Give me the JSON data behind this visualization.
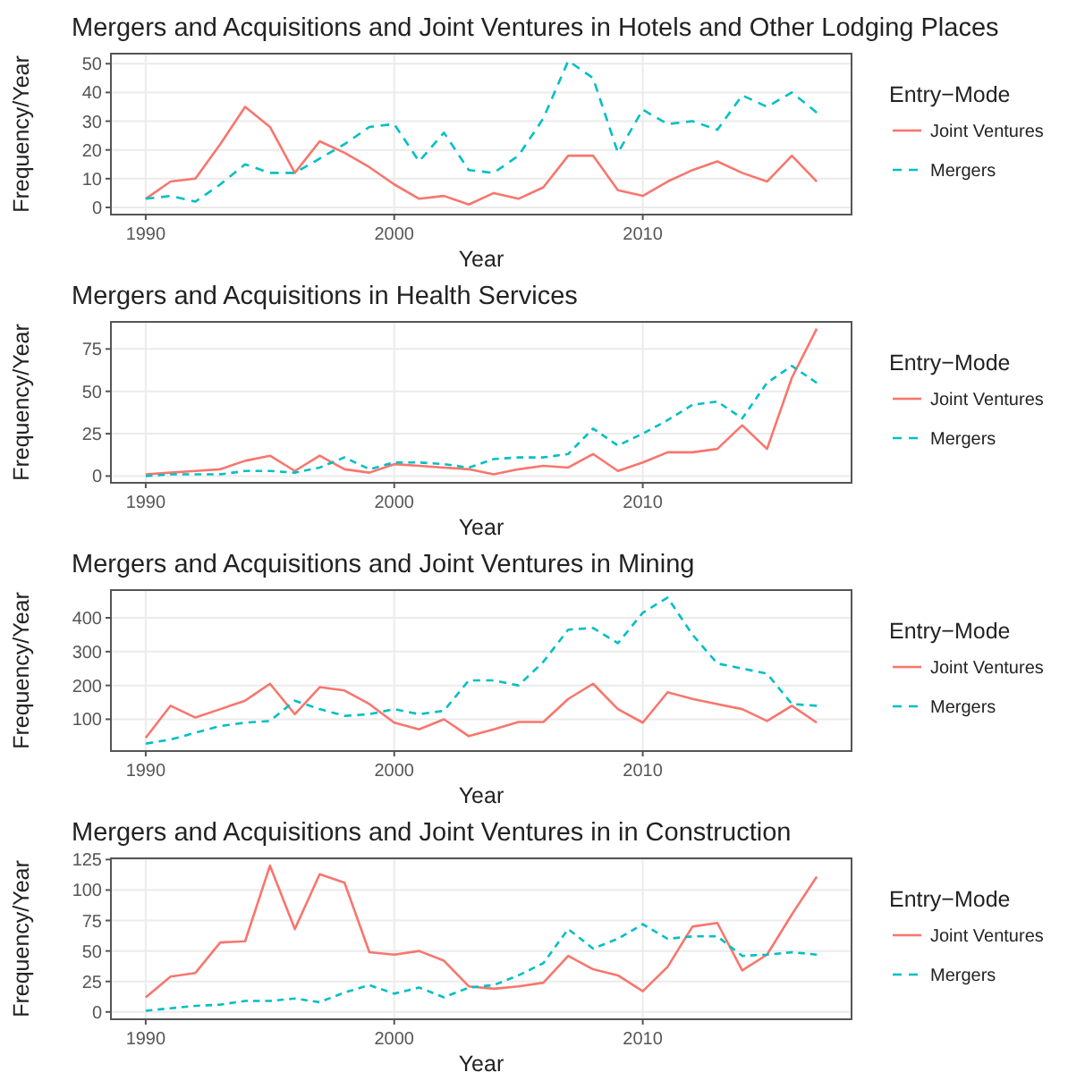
{
  "chart_data": [
    {
      "type": "line",
      "title": "Mergers and Acquisitions and Joint Ventures in Hotels and Other Lodging Places",
      "xlabel": "Year",
      "ylabel": "Frequency/Year",
      "legend_title": "Entry−Mode",
      "legend": "right",
      "grid": true,
      "x": [
        1990,
        1991,
        1992,
        1993,
        1994,
        1995,
        1996,
        1997,
        1998,
        1999,
        2000,
        2001,
        2002,
        2003,
        2004,
        2005,
        2006,
        2007,
        2008,
        2009,
        2010,
        2011,
        2012,
        2013,
        2014,
        2015,
        2016,
        2017
      ],
      "xlim": [
        1988.6,
        2018.4
      ],
      "xticks": [
        1990,
        2000,
        2010
      ],
      "ylim": [
        -2.5,
        53.5
      ],
      "yticks": [
        0,
        10,
        20,
        30,
        40,
        50
      ],
      "series": [
        {
          "name": "Joint Ventures",
          "color": "#f8766d",
          "line_style": "solid",
          "values": [
            3,
            9,
            10,
            22,
            35,
            28,
            12,
            23,
            19,
            14,
            8,
            3,
            4,
            1,
            5,
            3,
            7,
            18,
            18,
            6,
            4,
            9,
            13,
            16,
            12,
            9,
            18,
            9
          ]
        },
        {
          "name": "Mergers",
          "color": "#00bfc4",
          "line_style": "dashed",
          "values": [
            3,
            4,
            2,
            8,
            15,
            12,
            12,
            17,
            22,
            28,
            29,
            16,
            26,
            13,
            12,
            18,
            31,
            51,
            45,
            19,
            34,
            29,
            30,
            27,
            39,
            35,
            40,
            33
          ]
        }
      ]
    },
    {
      "type": "line",
      "title": "Mergers and Acquisitions in Health Services",
      "xlabel": "Year",
      "ylabel": "Frequency/Year",
      "legend_title": "Entry−Mode",
      "legend": "right",
      "grid": true,
      "x": [
        1990,
        1991,
        1992,
        1993,
        1994,
        1995,
        1996,
        1997,
        1998,
        1999,
        2000,
        2001,
        2002,
        2003,
        2004,
        2005,
        2006,
        2007,
        2008,
        2009,
        2010,
        2011,
        2012,
        2013,
        2014,
        2015,
        2016,
        2017
      ],
      "xlim": [
        1988.6,
        2018.4
      ],
      "xticks": [
        1990,
        2000,
        2010
      ],
      "ylim": [
        -4,
        91
      ],
      "yticks": [
        0,
        25,
        50,
        75
      ],
      "series": [
        {
          "name": "Joint Ventures",
          "color": "#f8766d",
          "line_style": "solid",
          "values": [
            1,
            2,
            3,
            4,
            9,
            12,
            3,
            12,
            4,
            2,
            7,
            6,
            5,
            4,
            1,
            4,
            6,
            5,
            13,
            3,
            8,
            14,
            14,
            16,
            30,
            16,
            58,
            87
          ]
        },
        {
          "name": "Mergers",
          "color": "#00bfc4",
          "line_style": "dashed",
          "values": [
            0,
            1,
            1,
            1,
            3,
            3,
            2,
            5,
            11,
            4,
            8,
            8,
            7,
            5,
            10,
            11,
            11,
            13,
            28,
            18,
            25,
            33,
            42,
            44,
            34,
            55,
            65,
            55
          ]
        }
      ]
    },
    {
      "type": "line",
      "title": "Mergers and Acquisitions and Joint Ventures in Mining",
      "xlabel": "Year",
      "ylabel": "Frequency/Year",
      "legend_title": "Entry−Mode",
      "legend": "right",
      "grid": true,
      "x": [
        1990,
        1991,
        1992,
        1993,
        1994,
        1995,
        1996,
        1997,
        1998,
        1999,
        2000,
        2001,
        2002,
        2003,
        2004,
        2005,
        2006,
        2007,
        2008,
        2009,
        2010,
        2011,
        2012,
        2013,
        2014,
        2015,
        2016,
        2017
      ],
      "xlim": [
        1988.6,
        2018.4
      ],
      "xticks": [
        1990,
        2000,
        2010
      ],
      "ylim": [
        6,
        482
      ],
      "yticks": [
        100,
        200,
        300,
        400
      ],
      "series": [
        {
          "name": "Joint Ventures",
          "color": "#f8766d",
          "line_style": "solid",
          "values": [
            45,
            140,
            105,
            130,
            155,
            205,
            115,
            195,
            185,
            145,
            90,
            70,
            100,
            50,
            70,
            92,
            92,
            160,
            205,
            130,
            90,
            180,
            160,
            145,
            130,
            95,
            140,
            90
          ]
        },
        {
          "name": "Mergers",
          "color": "#00bfc4",
          "line_style": "dashed",
          "values": [
            28,
            40,
            60,
            80,
            90,
            95,
            155,
            130,
            110,
            115,
            130,
            115,
            125,
            215,
            215,
            200,
            270,
            365,
            370,
            325,
            415,
            460,
            350,
            265,
            250,
            235,
            145,
            140
          ]
        }
      ]
    },
    {
      "type": "line",
      "title": "Mergers and Acquisitions and Joint Ventures in in Construction",
      "xlabel": "Year",
      "ylabel": "Frequency/Year",
      "legend_title": "Entry−Mode",
      "legend": "right",
      "grid": true,
      "x": [
        1990,
        1991,
        1992,
        1993,
        1994,
        1995,
        1996,
        1997,
        1998,
        1999,
        2000,
        2001,
        2002,
        2003,
        2004,
        2005,
        2006,
        2007,
        2008,
        2009,
        2010,
        2011,
        2012,
        2013,
        2014,
        2015,
        2016,
        2017
      ],
      "xlim": [
        1988.6,
        2018.4
      ],
      "xticks": [
        1990,
        2000,
        2010
      ],
      "ylim": [
        -6,
        126
      ],
      "yticks": [
        0,
        25,
        50,
        75,
        100,
        125
      ],
      "series": [
        {
          "name": "Joint Ventures",
          "color": "#f8766d",
          "line_style": "solid",
          "values": [
            12,
            29,
            32,
            57,
            58,
            120,
            68,
            113,
            106,
            49,
            47,
            50,
            42,
            21,
            19,
            21,
            24,
            46,
            35,
            30,
            17,
            37,
            70,
            73,
            34,
            47,
            80,
            111
          ]
        },
        {
          "name": "Mergers",
          "color": "#00bfc4",
          "line_style": "dashed",
          "values": [
            1,
            3,
            5,
            6,
            9,
            9,
            11,
            8,
            16,
            22,
            15,
            20,
            12,
            20,
            22,
            30,
            40,
            68,
            52,
            60,
            72,
            60,
            62,
            62,
            46,
            47,
            49,
            47
          ]
        }
      ]
    }
  ]
}
